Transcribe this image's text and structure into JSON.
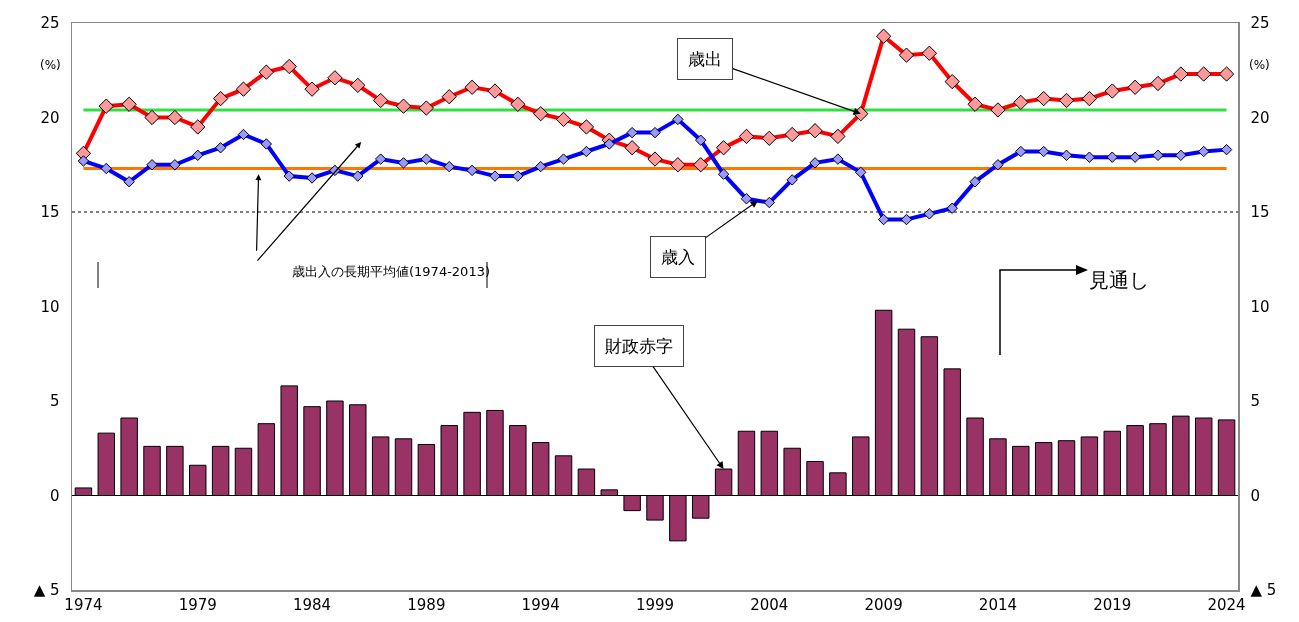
{
  "chart_data": {
    "type": "bar",
    "x": [
      1974,
      1975,
      1976,
      1977,
      1978,
      1979,
      1980,
      1981,
      1982,
      1983,
      1984,
      1985,
      1986,
      1987,
      1988,
      1989,
      1990,
      1991,
      1992,
      1993,
      1994,
      1995,
      1996,
      1997,
      1998,
      1999,
      2000,
      2001,
      2002,
      2003,
      2004,
      2005,
      2006,
      2007,
      2008,
      2009,
      2010,
      2011,
      2012,
      2013,
      2014,
      2015,
      2016,
      2017,
      2018,
      2019,
      2020,
      2021,
      2022,
      2023,
      2024
    ],
    "series": [
      {
        "name": "財政赤字",
        "color": "#993366",
        "values": [
          0.4,
          3.3,
          4.1,
          2.6,
          2.6,
          1.6,
          2.6,
          2.5,
          3.8,
          5.8,
          4.7,
          5.0,
          4.8,
          3.1,
          3.0,
          2.7,
          3.7,
          4.4,
          4.5,
          3.7,
          2.8,
          2.1,
          1.4,
          0.3,
          -0.8,
          -1.3,
          -2.4,
          -1.2,
          1.4,
          3.4,
          3.4,
          2.5,
          1.8,
          1.2,
          3.1,
          9.8,
          8.8,
          8.4,
          6.7,
          4.1,
          3.0,
          2.6,
          2.8,
          2.9,
          3.1,
          3.4,
          3.7,
          3.8,
          4.2,
          4.1,
          4.0
        ]
      },
      {
        "name": "歳出",
        "type": "line",
        "color": "#ff0000",
        "values": [
          18.1,
          20.6,
          20.7,
          20.0,
          20.0,
          19.5,
          21.0,
          21.5,
          22.4,
          22.7,
          21.5,
          22.1,
          21.7,
          20.9,
          20.6,
          20.5,
          21.1,
          21.6,
          21.4,
          20.7,
          20.2,
          19.9,
          19.5,
          18.8,
          18.4,
          17.8,
          17.5,
          17.5,
          18.4,
          19.0,
          18.9,
          19.1,
          19.3,
          19.0,
          20.2,
          24.3,
          23.3,
          23.4,
          21.9,
          20.7,
          20.4,
          20.8,
          21.0,
          20.9,
          21.0,
          21.4,
          21.6,
          21.8,
          22.3,
          22.3,
          22.3
        ]
      },
      {
        "name": "歳入",
        "type": "line",
        "color": "#0000ff",
        "values": [
          17.7,
          17.3,
          16.6,
          17.5,
          17.5,
          18.0,
          18.4,
          19.1,
          18.6,
          16.9,
          16.8,
          17.2,
          16.9,
          17.8,
          17.6,
          17.8,
          17.4,
          17.2,
          16.9,
          16.9,
          17.4,
          17.8,
          18.2,
          18.6,
          19.2,
          19.2,
          19.9,
          18.8,
          17.0,
          15.7,
          15.5,
          16.7,
          17.6,
          17.8,
          17.1,
          14.6,
          14.6,
          14.9,
          15.2,
          16.6,
          17.5,
          18.2,
          18.2,
          18.0,
          17.9,
          17.9,
          17.9,
          18.0,
          18.0,
          18.2,
          18.3
        ]
      }
    ],
    "marker": "diamond",
    "xlim": [
      1973.5,
      2024.5
    ],
    "xticks": [
      1974,
      1979,
      1984,
      1989,
      1994,
      1999,
      2004,
      2009,
      2014,
      2019,
      2024
    ],
    "ylim": [
      -5,
      25
    ],
    "yticks": [
      {
        "value": -5,
        "label": "▲ 5"
      },
      0,
      5,
      10,
      15,
      20,
      25
    ],
    "y2lim": [
      -5,
      25
    ],
    "y2ticks": [
      {
        "value": -5,
        "label": "▲ 5"
      },
      0,
      5,
      10,
      15,
      20,
      25
    ],
    "ylabel": "(%)",
    "y2label": "(%)",
    "ref_lines": [
      {
        "axis": "y",
        "value": 20.4,
        "color": "#33dd44",
        "line_style": "solid"
      },
      {
        "axis": "y",
        "value": 17.3,
        "color": "#ff7700",
        "line_style": "solid"
      },
      {
        "axis": "y",
        "value": 15,
        "color": "#000000",
        "line_style": "dotted"
      }
    ],
    "annotations": [
      "歳出入の長期平均値(1974-2013)",
      "見通し"
    ]
  }
}
